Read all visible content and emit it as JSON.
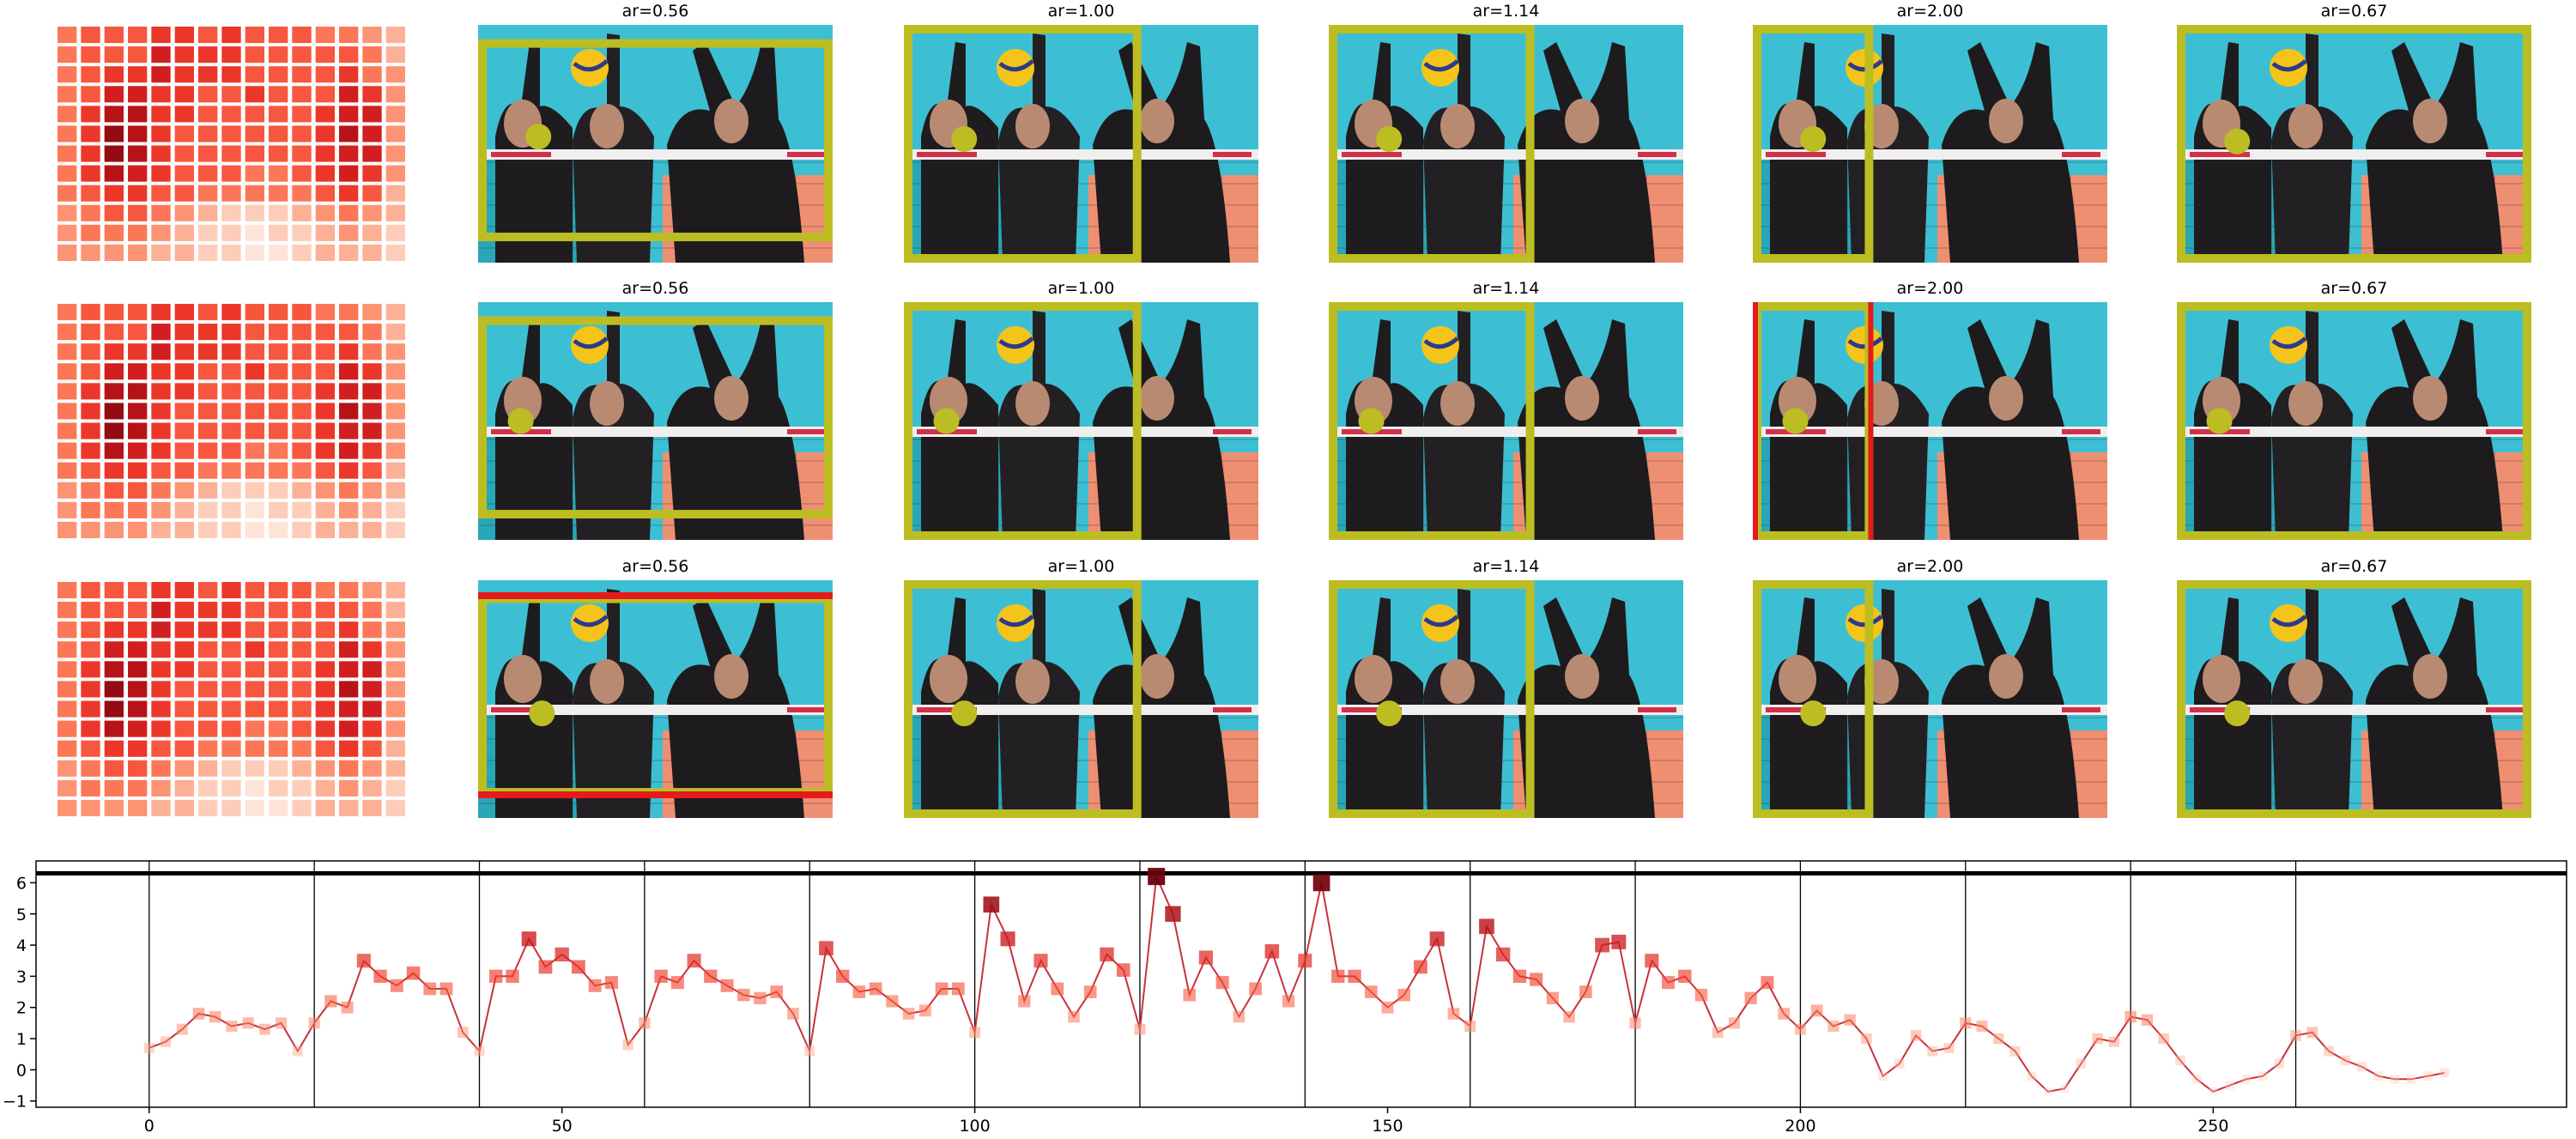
{
  "chart_data": [
    {
      "type": "heatmap",
      "colormap": "Reds",
      "values": [
        [
          0.4,
          0.5,
          0.5,
          0.5,
          0.6,
          0.6,
          0.5,
          0.6,
          0.5,
          0.5,
          0.5,
          0.4,
          0.4,
          0.3,
          0.2
        ],
        [
          0.4,
          0.5,
          0.5,
          0.5,
          0.7,
          0.6,
          0.6,
          0.6,
          0.5,
          0.5,
          0.5,
          0.5,
          0.5,
          0.4,
          0.2
        ],
        [
          0.4,
          0.5,
          0.6,
          0.6,
          0.7,
          0.6,
          0.6,
          0.6,
          0.5,
          0.5,
          0.5,
          0.5,
          0.6,
          0.4,
          0.3
        ],
        [
          0.4,
          0.5,
          0.7,
          0.7,
          0.6,
          0.6,
          0.5,
          0.5,
          0.6,
          0.5,
          0.5,
          0.5,
          0.7,
          0.6,
          0.3
        ],
        [
          0.4,
          0.6,
          0.8,
          0.8,
          0.6,
          0.6,
          0.5,
          0.5,
          0.5,
          0.5,
          0.5,
          0.6,
          0.7,
          0.7,
          0.3
        ],
        [
          0.4,
          0.6,
          0.9,
          0.8,
          0.6,
          0.5,
          0.5,
          0.5,
          0.5,
          0.5,
          0.5,
          0.6,
          0.8,
          0.7,
          0.3
        ],
        [
          0.4,
          0.6,
          0.9,
          0.8,
          0.6,
          0.5,
          0.5,
          0.5,
          0.5,
          0.5,
          0.5,
          0.6,
          0.7,
          0.7,
          0.3
        ],
        [
          0.4,
          0.6,
          0.8,
          0.7,
          0.6,
          0.5,
          0.5,
          0.5,
          0.4,
          0.4,
          0.5,
          0.6,
          0.7,
          0.6,
          0.3
        ],
        [
          0.4,
          0.5,
          0.6,
          0.6,
          0.5,
          0.5,
          0.4,
          0.4,
          0.4,
          0.4,
          0.4,
          0.5,
          0.6,
          0.5,
          0.2
        ],
        [
          0.3,
          0.4,
          0.5,
          0.5,
          0.4,
          0.3,
          0.2,
          0.1,
          0.1,
          0.1,
          0.2,
          0.3,
          0.4,
          0.3,
          0.2
        ],
        [
          0.3,
          0.4,
          0.4,
          0.4,
          0.3,
          0.2,
          0.1,
          0.1,
          0.0,
          0.1,
          0.1,
          0.2,
          0.3,
          0.2,
          0.1
        ],
        [
          0.3,
          0.3,
          0.3,
          0.3,
          0.2,
          0.2,
          0.1,
          0.1,
          0.0,
          0.0,
          0.1,
          0.2,
          0.2,
          0.2,
          0.1
        ]
      ]
    },
    {
      "type": "image-grid",
      "box_color": "#bcbd22",
      "highlight_color": "#e41a1c",
      "titles": [
        [
          "ar=0.56",
          "ar=1.00",
          "ar=1.14",
          "ar=2.00",
          "ar=0.67"
        ],
        [
          "ar=0.56",
          "ar=1.00",
          "ar=1.14",
          "ar=2.00",
          "ar=0.67"
        ],
        [
          "ar=0.56",
          "ar=1.00",
          "ar=1.14",
          "ar=2.00",
          "ar=0.67"
        ]
      ]
    },
    {
      "type": "line",
      "colormap": "Reds",
      "line_color": "#c8323c",
      "x": [
        0,
        2,
        4,
        6,
        8,
        10,
        12,
        14,
        16,
        18,
        20,
        22,
        24,
        26,
        28,
        30,
        32,
        34,
        36,
        38,
        40,
        42,
        44,
        46,
        48,
        50,
        52,
        54,
        56,
        58,
        60,
        62,
        64,
        66,
        68,
        70,
        72,
        74,
        76,
        78,
        80,
        82,
        84,
        86,
        88,
        90,
        92,
        94,
        96,
        98,
        100,
        102,
        104,
        106,
        108,
        110,
        112,
        114,
        116,
        118,
        120,
        122,
        124,
        126,
        128,
        130,
        132,
        134,
        136,
        138,
        140,
        142,
        144,
        146,
        148,
        150,
        152,
        154,
        156,
        158,
        160,
        162,
        164,
        166,
        168,
        170,
        172,
        174,
        176,
        178,
        180,
        182,
        184,
        186,
        188,
        190,
        192,
        194,
        196,
        198,
        200,
        202,
        204,
        206,
        208,
        210,
        212,
        214,
        216,
        218,
        220,
        222,
        224,
        226,
        228,
        230,
        232,
        234,
        236,
        238,
        240,
        242,
        244,
        246,
        248,
        250,
        252,
        254,
        256,
        258,
        260,
        262,
        264,
        266,
        268,
        270,
        272,
        274,
        276,
        278
      ],
      "values": [
        0.7,
        0.9,
        1.3,
        1.8,
        1.7,
        1.4,
        1.5,
        1.3,
        1.5,
        0.6,
        1.5,
        2.2,
        2.0,
        3.5,
        3.0,
        2.7,
        3.1,
        2.6,
        2.6,
        1.2,
        0.6,
        3.0,
        3.0,
        4.2,
        3.3,
        3.7,
        3.3,
        2.7,
        2.8,
        0.8,
        1.5,
        3.0,
        2.8,
        3.5,
        3.0,
        2.7,
        2.4,
        2.3,
        2.5,
        1.8,
        0.6,
        3.9,
        3.0,
        2.5,
        2.6,
        2.2,
        1.8,
        1.9,
        2.6,
        2.6,
        1.2,
        5.3,
        4.2,
        2.2,
        3.5,
        2.6,
        1.7,
        2.5,
        3.7,
        3.2,
        1.3,
        6.2,
        5.0,
        2.4,
        3.6,
        2.8,
        1.7,
        2.6,
        3.8,
        2.2,
        3.5,
        6.0,
        3.0,
        3.0,
        2.5,
        2.0,
        2.4,
        3.3,
        4.2,
        1.8,
        1.4,
        4.6,
        3.7,
        3.0,
        2.9,
        2.3,
        1.7,
        2.5,
        4.0,
        4.1,
        1.5,
        3.5,
        2.8,
        3.0,
        2.4,
        1.2,
        1.5,
        2.3,
        2.8,
        1.8,
        1.3,
        1.9,
        1.4,
        1.6,
        1.0,
        -0.2,
        0.2,
        1.1,
        0.6,
        0.7,
        1.5,
        1.4,
        1.0,
        0.6,
        -0.2,
        -0.7,
        -0.6,
        0.2,
        1.0,
        0.9,
        1.7,
        1.6,
        1.0,
        0.3,
        -0.3,
        -0.7,
        -0.5,
        -0.3,
        -0.2,
        0.2,
        1.1,
        1.2,
        0.6,
        0.3,
        0.1,
        -0.2,
        -0.3,
        -0.3,
        -0.2,
        -0.1
      ],
      "xlim": [
        -13.7,
        292.8
      ],
      "ylim": [
        -1.2,
        6.7
      ],
      "xticks": [
        0,
        50,
        100,
        150,
        200,
        250
      ],
      "yticks": [
        {
          "value": -1,
          "label": "−1"
        },
        0,
        1,
        2,
        3,
        4,
        5,
        6
      ],
      "vlines": [
        0,
        20,
        40,
        60,
        80,
        100,
        120,
        140,
        160,
        180,
        200,
        220,
        240,
        260
      ],
      "hline": 6.3
    }
  ]
}
